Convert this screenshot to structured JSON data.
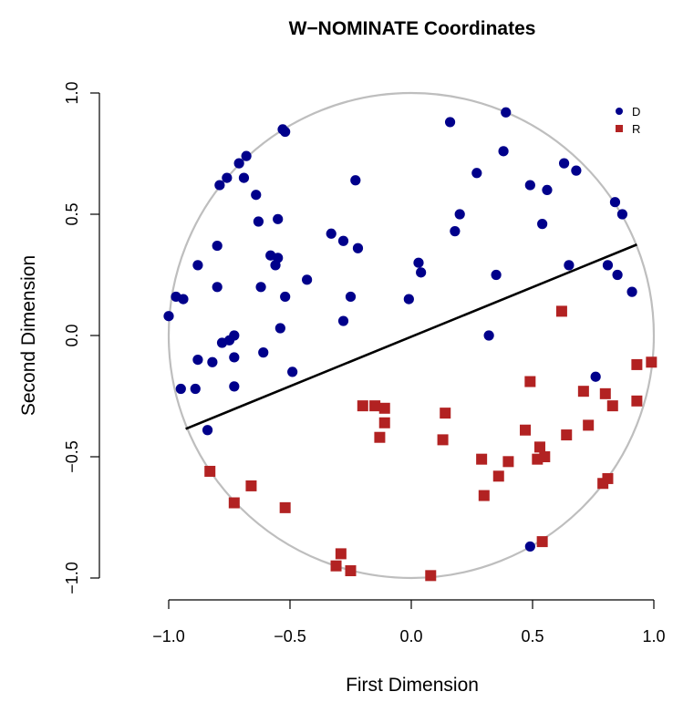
{
  "chart_data": {
    "type": "scatter",
    "title": "W−NOMINATE Coordinates",
    "xlabel": "First Dimension",
    "ylabel": "Second Dimension",
    "xlim": [
      -1.0,
      1.0
    ],
    "ylim": [
      -1.0,
      1.0
    ],
    "x_ticks": [
      -1.0,
      -0.5,
      0.0,
      0.5,
      1.0
    ],
    "x_tick_labels": [
      "−1.0",
      "−0.5",
      "0.0",
      "0.5",
      "1.0"
    ],
    "y_ticks": [
      -1.0,
      -0.5,
      0.0,
      0.5,
      1.0
    ],
    "y_tick_labels": [
      "−1.0",
      "−0.5",
      "0.0",
      "0.5",
      "1.0"
    ],
    "grid": false,
    "legend_position": "top-right",
    "unit_circle": {
      "radius": 1.0,
      "color": "#bebebe"
    },
    "cutting_line": {
      "x": [
        -0.93,
        0.93
      ],
      "y": [
        -0.385,
        0.375
      ],
      "color": "#000000"
    },
    "series": [
      {
        "name": "D",
        "color": "#00008b",
        "marker": "circle",
        "points": [
          [
            -1.0,
            0.08
          ],
          [
            -0.97,
            0.16
          ],
          [
            -0.94,
            0.15
          ],
          [
            -0.95,
            -0.22
          ],
          [
            -0.89,
            -0.22
          ],
          [
            -0.88,
            -0.1
          ],
          [
            -0.88,
            0.29
          ],
          [
            -0.84,
            -0.39
          ],
          [
            -0.82,
            -0.11
          ],
          [
            -0.8,
            0.2
          ],
          [
            -0.8,
            0.37
          ],
          [
            -0.79,
            0.62
          ],
          [
            -0.78,
            -0.03
          ],
          [
            -0.76,
            0.65
          ],
          [
            -0.75,
            -0.02
          ],
          [
            -0.73,
            -0.09
          ],
          [
            -0.73,
            0.0
          ],
          [
            -0.73,
            -0.21
          ],
          [
            -0.71,
            0.71
          ],
          [
            -0.69,
            0.65
          ],
          [
            -0.68,
            0.74
          ],
          [
            -0.64,
            0.58
          ],
          [
            -0.63,
            0.47
          ],
          [
            -0.62,
            0.2
          ],
          [
            -0.61,
            -0.07
          ],
          [
            -0.58,
            0.33
          ],
          [
            -0.56,
            0.29
          ],
          [
            -0.55,
            0.32
          ],
          [
            -0.55,
            0.48
          ],
          [
            -0.54,
            0.03
          ],
          [
            -0.53,
            0.85
          ],
          [
            -0.52,
            0.84
          ],
          [
            -0.52,
            0.16
          ],
          [
            -0.49,
            -0.15
          ],
          [
            -0.43,
            0.23
          ],
          [
            -0.33,
            0.42
          ],
          [
            -0.28,
            0.39
          ],
          [
            -0.28,
            0.06
          ],
          [
            -0.25,
            0.16
          ],
          [
            -0.23,
            0.64
          ],
          [
            -0.22,
            0.36
          ],
          [
            -0.01,
            0.15
          ],
          [
            0.03,
            0.3
          ],
          [
            0.04,
            0.26
          ],
          [
            0.16,
            0.88
          ],
          [
            0.18,
            0.43
          ],
          [
            0.2,
            0.5
          ],
          [
            0.27,
            0.67
          ],
          [
            0.32,
            0.0
          ],
          [
            0.35,
            0.25
          ],
          [
            0.38,
            0.76
          ],
          [
            0.39,
            0.92
          ],
          [
            0.49,
            0.62
          ],
          [
            0.49,
            -0.87
          ],
          [
            0.54,
            0.46
          ],
          [
            0.56,
            0.6
          ],
          [
            0.63,
            0.71
          ],
          [
            0.65,
            0.29
          ],
          [
            0.68,
            0.68
          ],
          [
            0.76,
            -0.17
          ],
          [
            0.81,
            0.29
          ],
          [
            0.84,
            0.55
          ],
          [
            0.85,
            0.25
          ],
          [
            0.87,
            0.5
          ],
          [
            0.91,
            0.18
          ]
        ]
      },
      {
        "name": "R",
        "color": "#b22222",
        "marker": "square",
        "points": [
          [
            -0.83,
            -0.56
          ],
          [
            -0.73,
            -0.69
          ],
          [
            -0.66,
            -0.62
          ],
          [
            -0.52,
            -0.71
          ],
          [
            -0.31,
            -0.95
          ],
          [
            -0.29,
            -0.9
          ],
          [
            -0.25,
            -0.97
          ],
          [
            -0.2,
            -0.29
          ],
          [
            -0.15,
            -0.29
          ],
          [
            -0.13,
            -0.42
          ],
          [
            -0.11,
            -0.3
          ],
          [
            -0.11,
            -0.36
          ],
          [
            0.08,
            -0.99
          ],
          [
            0.13,
            -0.43
          ],
          [
            0.14,
            -0.32
          ],
          [
            0.29,
            -0.51
          ],
          [
            0.3,
            -0.66
          ],
          [
            0.36,
            -0.58
          ],
          [
            0.4,
            -0.52
          ],
          [
            0.47,
            -0.39
          ],
          [
            0.49,
            -0.19
          ],
          [
            0.52,
            -0.51
          ],
          [
            0.53,
            -0.46
          ],
          [
            0.54,
            -0.85
          ],
          [
            0.55,
            -0.5
          ],
          [
            0.62,
            0.1
          ],
          [
            0.64,
            -0.41
          ],
          [
            0.71,
            -0.23
          ],
          [
            0.73,
            -0.37
          ],
          [
            0.79,
            -0.61
          ],
          [
            0.8,
            -0.24
          ],
          [
            0.81,
            -0.59
          ],
          [
            0.83,
            -0.29
          ],
          [
            0.93,
            -0.27
          ],
          [
            0.93,
            -0.12
          ],
          [
            0.99,
            -0.11
          ]
        ]
      }
    ]
  }
}
